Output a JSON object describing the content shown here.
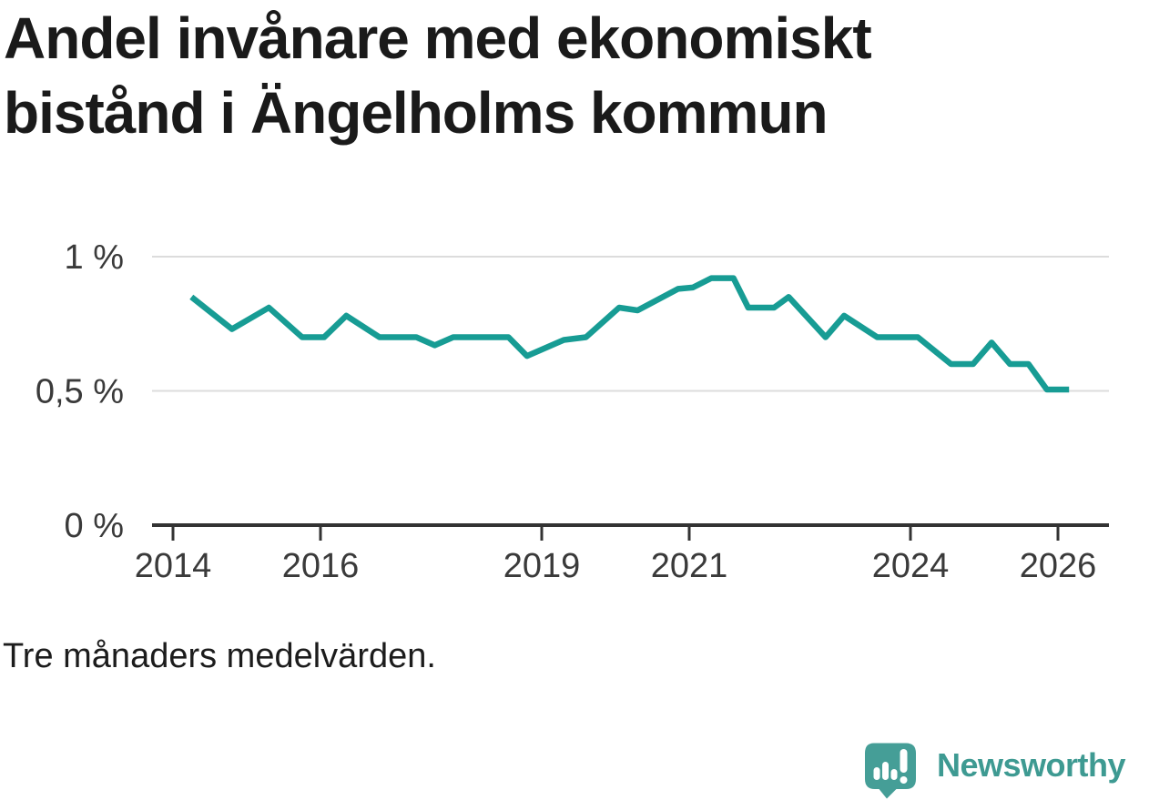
{
  "title": {
    "full": "Andel invånare med ekonomiskt bistånd i Ängelholms kommun",
    "lines": [
      "Andel invånare med ekonomiskt",
      "bistånd i Ängelholms kommun"
    ]
  },
  "footnote": "Tre månaders medelvärden.",
  "logo": {
    "text": "Newsworthy",
    "icon": "speech-bubble-with-bar-chart-and-exclamation",
    "color": "#3e9a92"
  },
  "colors": {
    "line": "#179c94",
    "title_text": "#1a1a1a",
    "axis_label_text": "#3a3a3a",
    "gridline": "#dcdcdc",
    "axis_line": "#333333",
    "background": "#ffffff"
  },
  "chart_data": {
    "type": "line",
    "title": "Andel invånare med ekonomiskt bistånd i Ängelholms kommun",
    "subtitle": "",
    "note": "Tre månaders medelvärden.",
    "unit": "%",
    "xlim": [
      2013.7,
      2026.7
    ],
    "ylim": [
      0,
      1.12
    ],
    "grid": true,
    "legend_position": "none",
    "y_ticks": [
      {
        "value": 0,
        "label": "0 %"
      },
      {
        "value": 0.5,
        "label": "0,5 %"
      },
      {
        "value": 1,
        "label": "1 %"
      }
    ],
    "x_ticks": [
      {
        "value": 2014,
        "label": "2014"
      },
      {
        "value": 2016,
        "label": "2016"
      },
      {
        "value": 2019,
        "label": "2019"
      },
      {
        "value": 2021,
        "label": "2021"
      },
      {
        "value": 2024,
        "label": "2024"
      },
      {
        "value": 2026,
        "label": "2026"
      }
    ],
    "series": [
      {
        "name": "Andel invånare med ekonomiskt bistånd (%)",
        "x": [
          2014.25,
          2014.8,
          2015.3,
          2015.75,
          2016.05,
          2016.35,
          2016.8,
          2017.3,
          2017.55,
          2017.8,
          2018.55,
          2018.8,
          2019.3,
          2019.6,
          2020.05,
          2020.3,
          2020.85,
          2021.05,
          2021.3,
          2021.6,
          2021.8,
          2022.15,
          2022.35,
          2022.85,
          2023.1,
          2023.55,
          2024.1,
          2024.55,
          2024.85,
          2025.1,
          2025.35,
          2025.6,
          2025.85,
          2026.15
        ],
        "y": [
          0.85,
          0.73,
          0.81,
          0.7,
          0.7,
          0.78,
          0.7,
          0.7,
          0.67,
          0.7,
          0.7,
          0.63,
          0.69,
          0.7,
          0.81,
          0.8,
          0.88,
          0.885,
          0.92,
          0.92,
          0.81,
          0.81,
          0.85,
          0.7,
          0.78,
          0.7,
          0.7,
          0.6,
          0.6,
          0.68,
          0.6,
          0.6,
          0.505,
          0.505
        ]
      }
    ]
  }
}
